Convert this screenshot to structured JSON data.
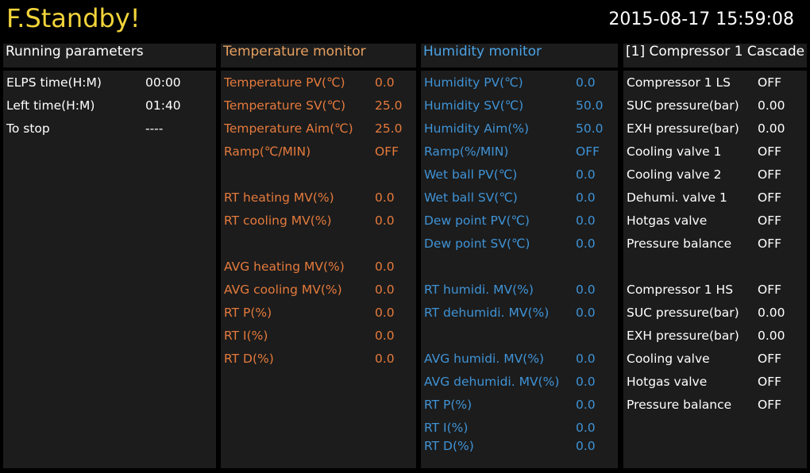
{
  "header": {
    "status": "F.Standby!",
    "datetime": "2015-08-17 15:59:08"
  },
  "panels": [
    {
      "title": "Running parameters",
      "groups": [
        [
          [
            "ELPS time(H:M)",
            "00:00"
          ],
          [
            "Left time(H:M)",
            "01:40"
          ],
          [
            "To stop",
            "----"
          ]
        ]
      ]
    },
    {
      "title": "Temperature monitor",
      "groups": [
        [
          [
            "Temperature PV(℃)",
            "0.0"
          ],
          [
            "Temperature SV(℃)",
            "25.0"
          ],
          [
            "Temperature Aim(℃)",
            "25.0"
          ],
          [
            "Ramp(℃/MIN)",
            "OFF"
          ]
        ],
        [
          [
            "RT heating MV(%)",
            "0.0"
          ],
          [
            "RT cooling MV(%)",
            "0.0"
          ]
        ],
        [
          [
            "AVG heating MV(%)",
            "0.0"
          ],
          [
            "AVG cooling MV(%)",
            "0.0"
          ],
          [
            "RT P(%)",
            "0.0"
          ],
          [
            "RT I(%)",
            "0.0"
          ],
          [
            "RT D(%)",
            "0.0"
          ]
        ]
      ]
    },
    {
      "title": "Humidity monitor",
      "groups": [
        [
          [
            "Humidity PV(℃)",
            "0.0"
          ],
          [
            "Humidity SV(℃)",
            "50.0"
          ],
          [
            "Humidity Aim(%)",
            "50.0"
          ],
          [
            "Ramp(%/MIN)",
            "OFF"
          ],
          [
            "Wet ball PV(℃)",
            "0.0"
          ],
          [
            "Wet ball SV(℃)",
            "0.0"
          ],
          [
            "Dew point PV(℃)",
            "0.0"
          ],
          [
            "Dew point SV(℃)",
            "0.0"
          ]
        ],
        [
          [
            "RT humidi. MV(%)",
            "0.0"
          ],
          [
            "RT dehumidi. MV(%)",
            "0.0"
          ]
        ],
        [
          [
            "AVG humidi. MV(%)",
            "0.0"
          ],
          [
            "AVG dehumidi. MV(%)",
            "0.0"
          ],
          [
            "RT P(%)",
            "0.0"
          ],
          [
            "RT I(%)",
            "0.0"
          ],
          [
            "RT D(%)",
            "0.0"
          ]
        ]
      ]
    },
    {
      "title": "[1] Compressor 1 Cascade",
      "groups": [
        [
          [
            "Compressor 1 LS",
            "OFF"
          ],
          [
            "SUC pressure(bar)",
            "0.00"
          ],
          [
            "EXH pressure(bar)",
            "0.00"
          ],
          [
            "Cooling valve 1",
            "OFF"
          ],
          [
            "Cooling valve 2",
            "OFF"
          ],
          [
            "Dehumi. valve 1",
            "OFF"
          ],
          [
            "Hotgas valve",
            "OFF"
          ],
          [
            "Pressure balance",
            "OFF"
          ]
        ],
        [
          [
            "Compressor 1 HS",
            "OFF"
          ],
          [
            "SUC pressure(bar)",
            "0.00"
          ],
          [
            "EXH pressure(bar)",
            "0.00"
          ],
          [
            "Cooling valve",
            "OFF"
          ],
          [
            "Hotgas valve",
            "OFF"
          ],
          [
            "Pressure balance",
            "OFF"
          ]
        ]
      ]
    }
  ]
}
